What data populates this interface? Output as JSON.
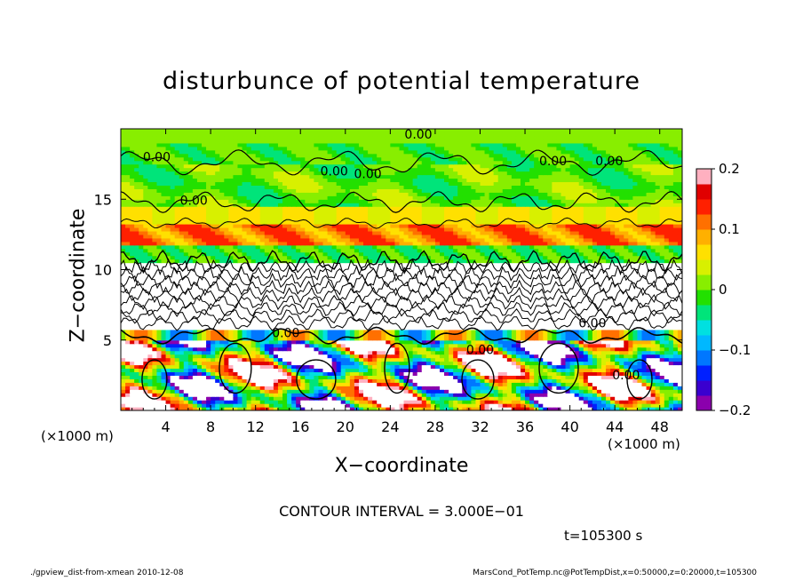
{
  "chart_data": {
    "type": "heatmap",
    "title": "disturbunce of potential temperature",
    "xlabel": "X−coordinate",
    "ylabel": "Z−coordinate",
    "xunit": "(×1000 m)",
    "zunit": "(×1000 m)",
    "xlim": [
      0,
      50
    ],
    "ylim": [
      0,
      20
    ],
    "x_ticks": [
      "4",
      "8",
      "12",
      "16",
      "20",
      "24",
      "28",
      "32",
      "36",
      "40",
      "44",
      "48"
    ],
    "x_tick_values": [
      4,
      8,
      12,
      16,
      20,
      24,
      28,
      32,
      36,
      40,
      44,
      48
    ],
    "y_ticks": [
      "5",
      "10",
      "15"
    ],
    "y_tick_values": [
      5,
      10,
      15
    ],
    "colorbar": {
      "range": [
        -0.2,
        0.2
      ],
      "tick_labels": [
        "0.2",
        "0.1",
        "0",
        "−0.1",
        "−0.2"
      ],
      "tick_values": [
        0.2,
        0.1,
        0,
        -0.1,
        -0.2
      ]
    },
    "contour_labels": [
      {
        "text": "0.00",
        "x": 26.5,
        "z": 19.3
      },
      {
        "text": "0.00",
        "x": 3.2,
        "z": 17.7
      },
      {
        "text": "0.00",
        "x": 19.0,
        "z": 16.7
      },
      {
        "text": "0.00",
        "x": 22.0,
        "z": 16.5
      },
      {
        "text": "0.00",
        "x": 38.5,
        "z": 17.4
      },
      {
        "text": "0.00",
        "x": 43.5,
        "z": 17.4
      },
      {
        "text": "0.00",
        "x": 6.5,
        "z": 14.6
      },
      {
        "text": "0.00",
        "x": 14.7,
        "z": 5.2
      },
      {
        "text": "0.00",
        "x": 42.0,
        "z": 5.9
      },
      {
        "text": "0.00",
        "x": 32.0,
        "z": 4.0
      },
      {
        "text": "0.00",
        "x": 45.0,
        "z": 2.2
      }
    ],
    "contour_interval": "CONTOUR INTERVAL = 3.000E−01",
    "time": "t=105300 s"
  },
  "footer": {
    "left": "./gpview_dist-from-xmean   2010-12-08",
    "right": "MarsCond_PotTemp.nc@PotTempDist,x=0:50000,z=0:20000,t=105300"
  }
}
